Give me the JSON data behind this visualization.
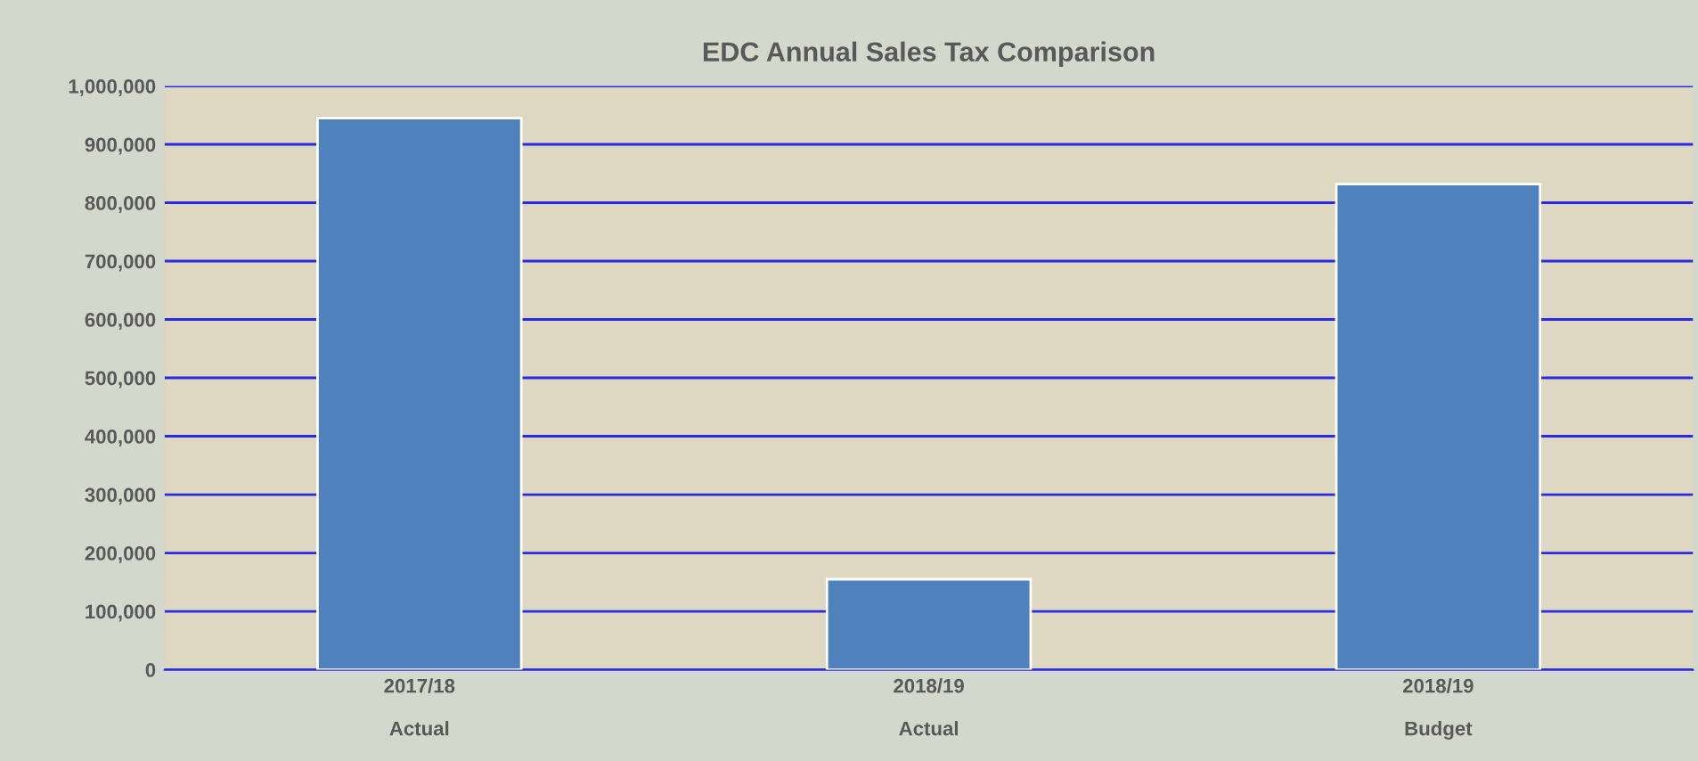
{
  "chart_data": {
    "type": "bar",
    "title": "EDC Annual Sales Tax Comparison",
    "categories": [
      "2017/18\n\nActual",
      "2018/19\n\nActual",
      "2018/19\n\nBudget"
    ],
    "values": [
      945000,
      155000,
      832000
    ],
    "color": "#4f81bd",
    "ylim": [
      0,
      1000000
    ],
    "yticks": [
      {
        "value": 0,
        "label": "0"
      },
      {
        "value": 100000,
        "label": "100,000"
      },
      {
        "value": 200000,
        "label": "200,000"
      },
      {
        "value": 300000,
        "label": "300,000"
      },
      {
        "value": 400000,
        "label": "400,000"
      },
      {
        "value": 500000,
        "label": "500,000"
      },
      {
        "value": 600000,
        "label": "600,000"
      },
      {
        "value": 700000,
        "label": "700,000"
      },
      {
        "value": 800000,
        "label": "800,000"
      },
      {
        "value": 900000,
        "label": "900,000"
      },
      {
        "value": 1000000,
        "label": "1,000,000"
      }
    ],
    "grid": "y"
  }
}
